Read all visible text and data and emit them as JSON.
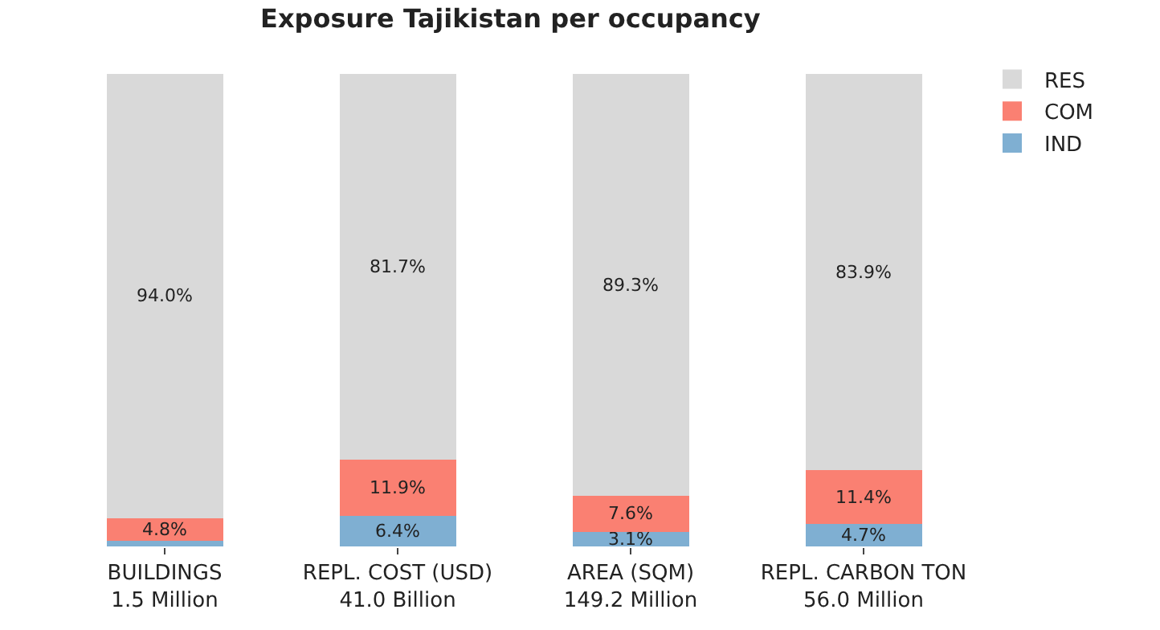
{
  "chart_data": {
    "type": "bar",
    "title": "Exposure Tajikistan per occupancy",
    "categories": [
      "BUILDINGS\n1.5 Million",
      "REPL. COST (USD)\n41.0 Billion",
      "AREA (SQM)\n149.2 Million",
      "REPL. CARBON TON\n56.0 Million"
    ],
    "stacked": true,
    "ylim": [
      0,
      100
    ],
    "tick_labels": "x",
    "grid": false,
    "legend": "top right",
    "series": [
      {
        "name": "IND",
        "color": "#7fafd2",
        "values": [
          1.2,
          6.4,
          3.1,
          4.7
        ],
        "value_labels": [
          null,
          "6.4%",
          "3.1%",
          "4.7%"
        ]
      },
      {
        "name": "COM",
        "color": "#fa8072",
        "values": [
          4.8,
          11.9,
          7.6,
          11.4
        ],
        "value_labels": [
          "4.8%",
          "11.9%",
          "7.6%",
          "11.4%"
        ]
      },
      {
        "name": "RES",
        "color": "#d9d9d9",
        "values": [
          94.0,
          81.7,
          89.3,
          83.9
        ],
        "value_labels": [
          "94.0%",
          "81.7%",
          "89.3%",
          "83.9%"
        ]
      }
    ]
  }
}
